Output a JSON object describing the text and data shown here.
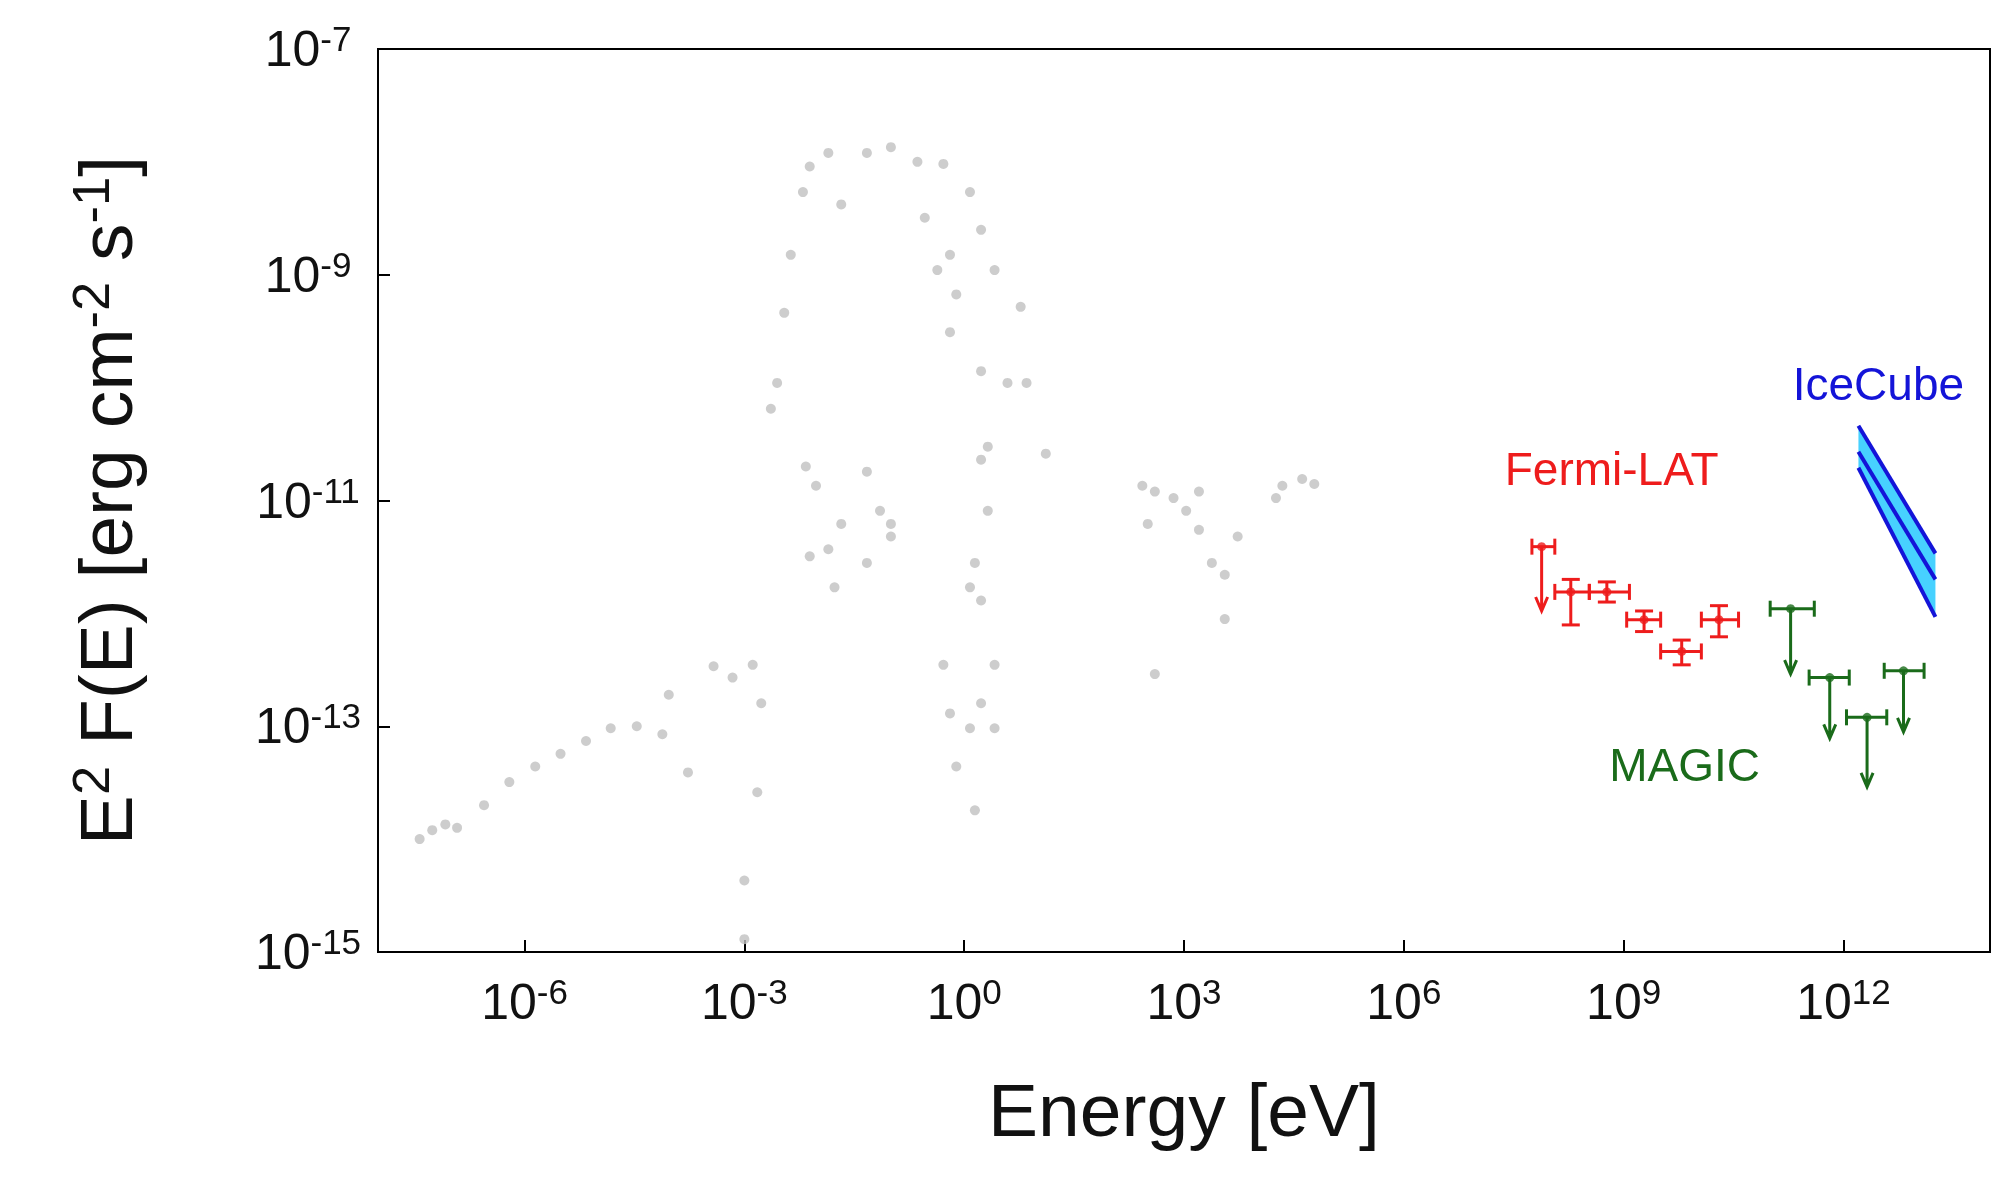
{
  "chart_data": {
    "type": "scatter",
    "xlabel": "Energy [eV]",
    "ylabel": "E$^{2}$ F(E) [erg cm$^{-2}$ s$^{-1}$]",
    "log": "xy",
    "marker": "circle",
    "xlim": [
      1e-08,
      100000000000000.0
    ],
    "ylim": [
      1e-15,
      1e-07
    ],
    "xticks": [
      {
        "value": 1e-06,
        "label": "10$^{-6}$"
      },
      {
        "value": 0.001,
        "label": "10$^{-3}$"
      },
      {
        "value": 1,
        "label": "10$^{0}$"
      },
      {
        "value": 1000.0,
        "label": "10$^{3}$"
      },
      {
        "value": 1000000.0,
        "label": "10$^{6}$"
      },
      {
        "value": 1000000000.0,
        "label": "10$^{9}$"
      },
      {
        "value": 1000000000000.0,
        "label": "10$^{12}$"
      }
    ],
    "yticks": [
      {
        "value": 1e-15,
        "label": "10$^{-15}$"
      },
      {
        "value": 1e-13,
        "label": "10$^{-13}$"
      },
      {
        "value": 1e-11,
        "label": "10$^{-11}$"
      },
      {
        "value": 1e-09,
        "label": "10$^{-9}$"
      },
      {
        "value": 1e-07,
        "label": "10$^{-7}$"
      }
    ],
    "series": [
      {
        "color": "#c0c0c0",
        "x": [
          3.7e-08,
          5.5e-08,
          8.3e-08,
          1.2e-07,
          2.8e-07,
          6.2e-07,
          1.4e-06,
          3.1e-06,
          6.9e-06,
          1.5e-05,
          3.4e-05,
          7.6e-05,
          9.3e-05,
          0.00017,
          0.00038,
          0.00069,
          0.001,
          0.0013,
          0.0015,
          0.0017,
          0.0023,
          0.0028,
          0.0035,
          0.0043,
          0.0063,
          0.0078,
          0.014,
          0.021,
          0.047,
          0.1,
          0.23,
          0.52,
          0.64,
          0.78,
          1.2,
          1.7,
          2.6,
          5.9,
          7.1,
          13,
          0.29,
          0.43,
          0.64,
          1.7,
          3.9,
          0.0069,
          0.0095,
          0.014,
          0.021,
          0.047,
          0.071,
          0.1,
          0.0078,
          0.017,
          0.047,
          0.1,
          0.52,
          0.64,
          0.78,
          1.2,
          1.7,
          2.6,
          1.7,
          1.4,
          2.1,
          1.7,
          1.4,
          1.2,
          2.6,
          2.1,
          270,
          320,
          720,
          1070,
          1600,
          2400,
          3600,
          5400,
          400,
          3600,
          22000.0,
          41000.0,
          60000.0,
          18000.0,
          1600,
          400,
          0.001
        ],
        "values": [
          1e-14,
          1.2e-14,
          1.35e-14,
          1.26e-14,
          2e-14,
          3.2e-14,
          4.4e-14,
          5.7e-14,
          7.4e-14,
          9.6e-14,
          1e-13,
          8.5e-14,
          1.9e-13,
          3.9e-14,
          3.4e-13,
          2.7e-13,
          4.3e-15,
          3.5e-13,
          2.6e-14,
          1.6e-13,
          6.5e-11,
          1.1e-10,
          4.6e-10,
          1.5e-09,
          5.4e-09,
          9.1e-09,
          1.2e-08,
          4.2e-09,
          1.2e-08,
          1.35e-08,
          1e-08,
          9.6e-09,
          1.5e-09,
          6.7e-10,
          5.4e-09,
          2.5e-09,
          1.1e-09,
          5.2e-10,
          1.1e-10,
          2.6e-11,
          3.2e-09,
          1.1e-09,
          3.1e-10,
          1.4e-10,
          1.1e-10,
          2e-11,
          1.35e-11,
          3.7e-12,
          6.2e-12,
          1.8e-11,
          8.1e-12,
          4.8e-12,
          3.2e-12,
          1.7e-12,
          2.8e-12,
          6.2e-12,
          3.5e-13,
          1.3e-13,
          4.4e-14,
          9.6e-14,
          1.6e-13,
          9.6e-14,
          1.3e-12,
          2.8e-12,
          8.1e-12,
          2.3e-11,
          1.8e-14,
          1.7e-12,
          3.5e-13,
          3e-11,
          1.35e-11,
          6.2e-12,
          1.05e-11,
          8.1e-12,
          5.5e-12,
          2.8e-12,
          2.2e-12,
          4.8e-12,
          2.9e-13,
          8.9e-13,
          1.35e-11,
          1.55e-11,
          1.4e-11,
          1.05e-11,
          1.2e-11,
          1.2e-11,
          1.3e-15
        ]
      },
      {
        "name": "Fermi-LAT",
        "color": "#ee1c1c",
        "x": [
          76000000.0,
          190000000.0,
          590000000.0,
          1900000000.0,
          6200000000.0,
          20000000000.0
        ],
        "values": [
          3.9e-12,
          1.55e-12,
          1.55e-12,
          8.8e-13,
          4.6e-13,
          8.8e-13
        ],
        "errors": [
          [
            1.05e-12,
            3.9e-12
          ],
          [
            7.9e-13,
            2e-12
          ],
          [
            1.26e-12,
            1.9e-12
          ],
          [
            6.9e-13,
            1.05e-12
          ],
          [
            3.5e-13,
            5.8e-13
          ],
          [
            6.2e-13,
            1.17e-12
          ]
        ],
        "xerrors": [
          [
            56000000.0,
            115000000.0
          ],
          [
            115000000.0,
            340000000.0
          ],
          [
            340000000.0,
            1200000000.0
          ],
          [
            1100000000.0,
            3200000000.0
          ],
          [
            3200000000.0,
            11500000000.0
          ],
          [
            11500000000.0,
            37000000000.0
          ]
        ]
      },
      {
        "name": "MAGIC",
        "color": "#1a6b1a",
        "x": [
          190000000000.0,
          650000000000.0,
          2100000000000.0,
          6600000000000.0
        ],
        "values": [
          1.1e-12,
          2.7e-13,
          1.2e-13,
          3.1e-13
        ],
        "errors": [
          [
            2.9e-13,
            1.1e-12
          ],
          [
            7.8e-14,
            2.7e-13
          ],
          [
            2.9e-14,
            1.2e-13
          ],
          [
            8.9e-14,
            3.1e-13
          ]
        ],
        "xerrors": [
          [
            100000000000.0,
            400000000000.0
          ],
          [
            340000000000.0,
            1200000000000.0
          ],
          [
            1100000000000.0,
            3900000000000.0
          ],
          [
            3600000000000.0,
            12600000000000.0
          ]
        ]
      },
      {
        "type": "line",
        "marker": "none",
        "name": "IceCube",
        "color": "#1414d8",
        "x": [
          1600000000000.0,
          18000000000000.0
        ],
        "values": [
          2.7e-11,
          2e-12
        ],
        "lower": [
          1.95e-11,
          9.3e-13
        ],
        "upper": [
          4.6e-11,
          3.4e-12
        ]
      }
    ]
  }
}
